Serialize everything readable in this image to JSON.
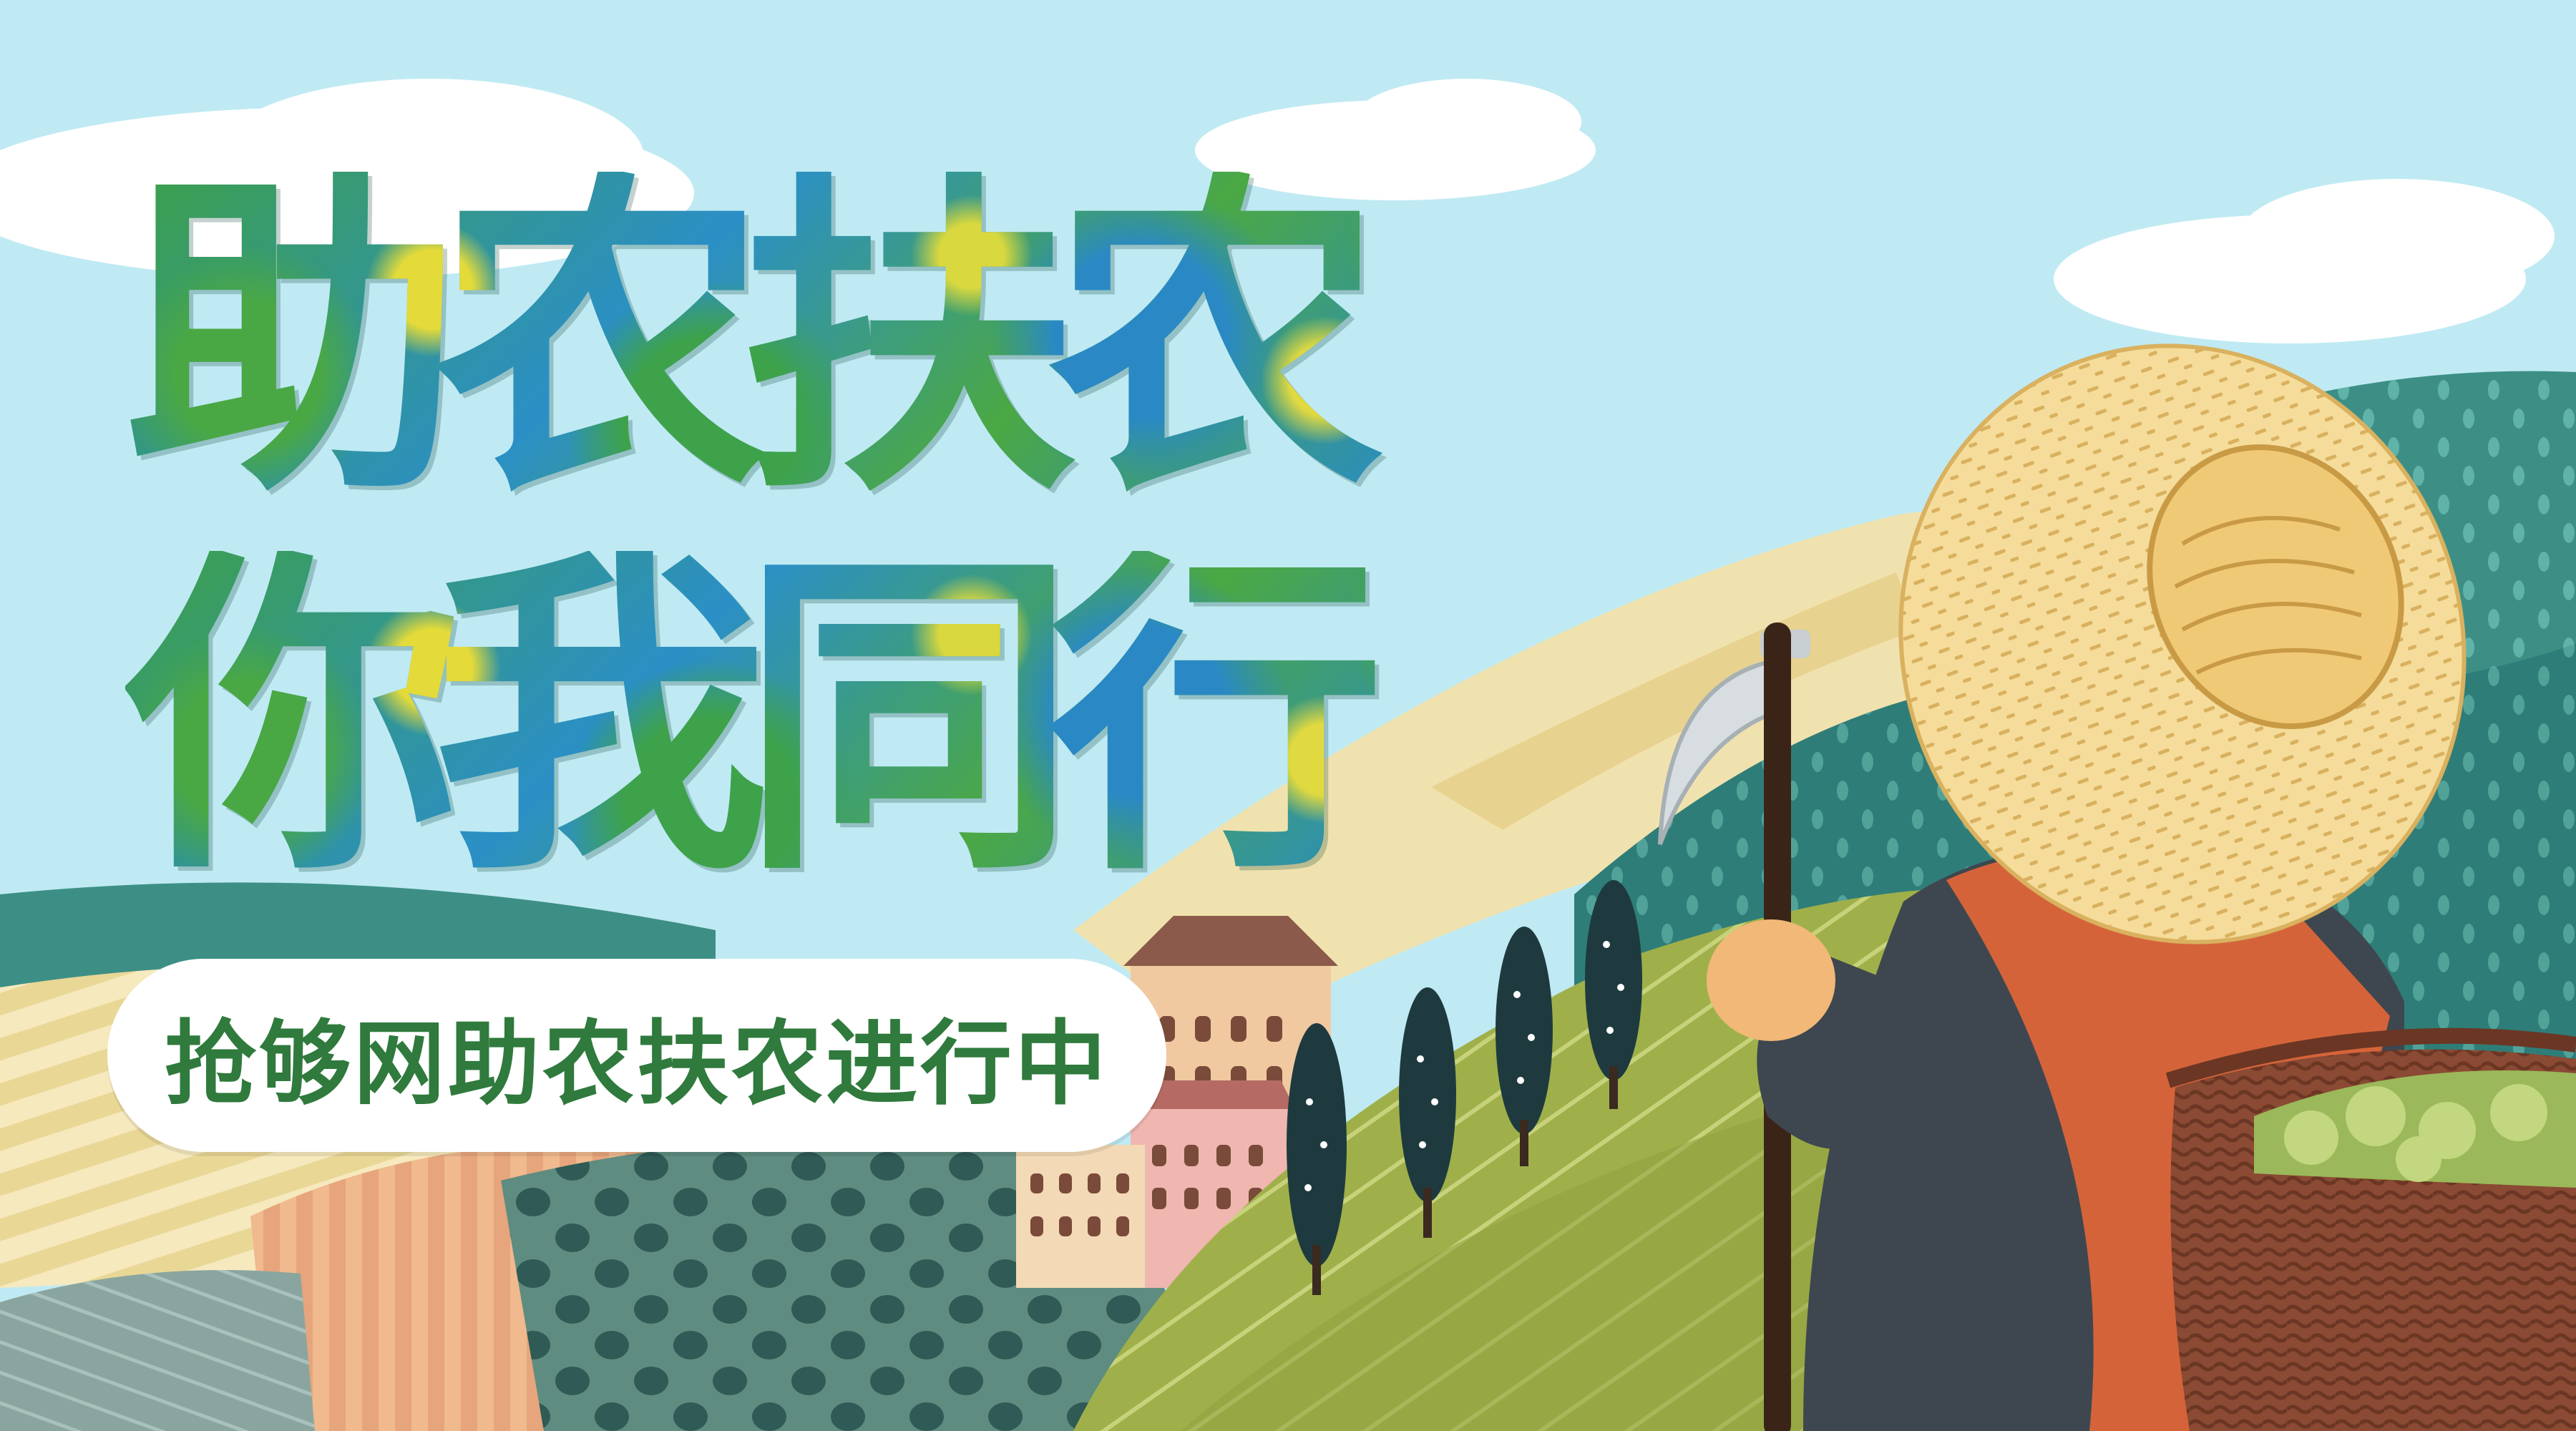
{
  "headline": {
    "line1": "助农扶农",
    "line2": "你我同行"
  },
  "slogan_pill": {
    "text": "抢够网助农扶农进行中"
  },
  "palette": {
    "sky": "#bfeaf3",
    "cloud": "#ffffff",
    "hill_teal": "#3d8f86",
    "hill_cream": "#f0e2ae",
    "field_green": "#a9b64d",
    "tree": "#1e3a3f",
    "hat": "#f5dc9a",
    "vest": "#d5633a",
    "basket": "#8a4a33",
    "slogan_text": "#2f7a3c"
  },
  "illustration": {
    "subject": "farmer-with-straw-hat-and-basket",
    "tool": "sickle",
    "features": [
      "clouds",
      "rolling-hills",
      "cypress-trees",
      "village-houses",
      "striped-fields"
    ]
  }
}
